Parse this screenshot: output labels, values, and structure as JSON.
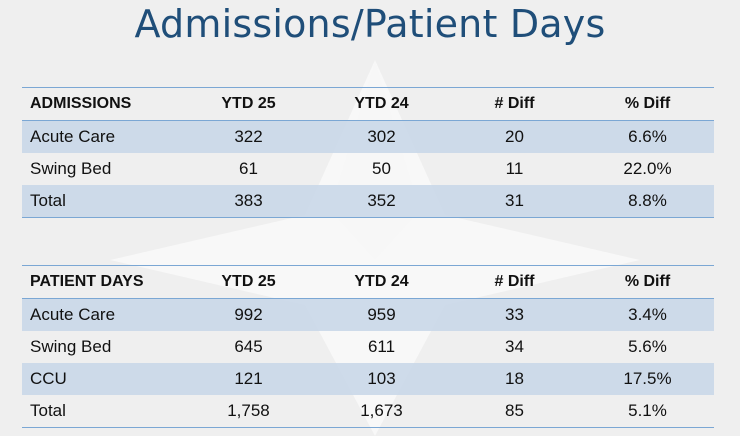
{
  "title": "Admissions/Patient Days",
  "admissions": {
    "headers": [
      "ADMISSIONS",
      "YTD 25",
      "YTD 24",
      "# Diff",
      "% Diff"
    ],
    "rows": [
      {
        "label": "Acute Care",
        "ytd25": "322",
        "ytd24": "302",
        "diff": "20",
        "pct": "6.6%"
      },
      {
        "label": "Swing Bed",
        "ytd25": "61",
        "ytd24": "50",
        "diff": "11",
        "pct": "22.0%"
      },
      {
        "label": "Total",
        "ytd25": "383",
        "ytd24": "352",
        "diff": "31",
        "pct": "8.8%"
      }
    ]
  },
  "patient_days": {
    "headers": [
      "PATIENT DAYS",
      "YTD 25",
      "YTD 24",
      "# Diff",
      "% Diff"
    ],
    "rows": [
      {
        "label": "Acute Care",
        "ytd25": "992",
        "ytd24": "959",
        "diff": "33",
        "pct": "3.4%"
      },
      {
        "label": "Swing Bed",
        "ytd25": "645",
        "ytd24": "611",
        "diff": "34",
        "pct": "5.6%"
      },
      {
        "label": "CCU",
        "ytd25": "121",
        "ytd24": "103",
        "diff": "18",
        "pct": "17.5%"
      },
      {
        "label": "Total",
        "ytd25": "1,758",
        "ytd24": "1,673",
        "diff": "85",
        "pct": "5.1%"
      }
    ]
  },
  "colors": {
    "title": "#1f4e79",
    "rule": "#7ba7d4",
    "row_shade": "#c7d6e8",
    "background": "#efefef"
  }
}
